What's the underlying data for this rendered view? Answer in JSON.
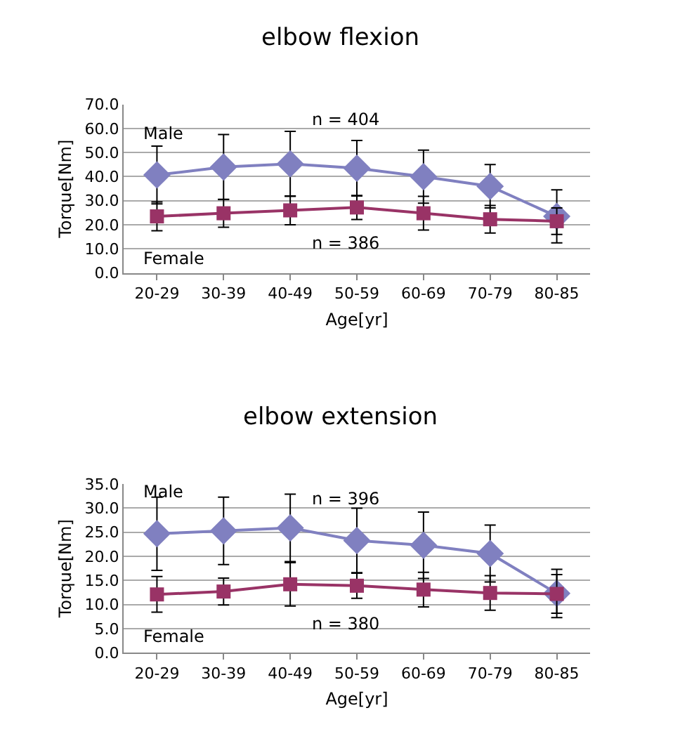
{
  "chart_data": [
    {
      "type": "line",
      "title": "elbow flexion",
      "xlabel": "Age[yr]",
      "ylabel": "Torque[Nm]",
      "categories": [
        "20-29",
        "30-39",
        "40-49",
        "50-59",
        "60-69",
        "70-79",
        "80-85"
      ],
      "series": [
        {
          "name": "Male",
          "color": "#8080c0",
          "marker": "diamond",
          "values": [
            40.7,
            44.0,
            45.3,
            43.5,
            40.0,
            36.0,
            23.5
          ],
          "errors": [
            12.0,
            13.5,
            13.5,
            11.5,
            11.0,
            9.0,
            11.0
          ]
        },
        {
          "name": "Female",
          "color": "#993366",
          "marker": "square",
          "values": [
            23.5,
            24.8,
            26.0,
            27.2,
            24.8,
            22.3,
            21.5
          ],
          "errors": [
            6.0,
            5.8,
            6.0,
            5.0,
            7.0,
            5.7,
            5.5
          ]
        }
      ],
      "annotations": [
        "n = 404",
        "n = 386"
      ],
      "ylim": [
        0,
        70
      ],
      "yticks": [
        {
          "value": 0,
          "label": "0.0"
        },
        {
          "value": 10,
          "label": "10.0"
        },
        {
          "value": 20,
          "label": "20.0"
        },
        {
          "value": 30,
          "label": "30.0"
        },
        {
          "value": 40,
          "label": "40.0"
        },
        {
          "value": 50,
          "label": "50.0"
        },
        {
          "value": 60,
          "label": "60.0"
        },
        {
          "value": 70,
          "label": "70.0"
        }
      ],
      "grid": "y"
    },
    {
      "type": "line",
      "title": "elbow extension",
      "xlabel": "Age[yr]",
      "ylabel": "Torque[Nm]",
      "categories": [
        "20-29",
        "30-39",
        "40-49",
        "50-59",
        "60-69",
        "70-79",
        "80-85"
      ],
      "series": [
        {
          "name": "Male",
          "color": "#8080c0",
          "marker": "diamond",
          "values": [
            24.7,
            25.3,
            25.9,
            23.3,
            22.3,
            20.6,
            12.3
          ],
          "errors": [
            7.6,
            7.0,
            7.0,
            6.7,
            6.9,
            5.9,
            5.0
          ]
        },
        {
          "name": "Female",
          "color": "#993366",
          "marker": "square",
          "values": [
            12.1,
            12.7,
            14.2,
            13.9,
            13.1,
            12.4,
            12.2
          ],
          "errors": [
            3.7,
            2.8,
            4.5,
            2.6,
            3.6,
            3.6,
            4.0
          ]
        }
      ],
      "annotations": [
        "n = 396",
        "n = 380"
      ],
      "ylim": [
        0,
        35
      ],
      "yticks": [
        {
          "value": 0,
          "label": "0.0"
        },
        {
          "value": 5,
          "label": "5.0"
        },
        {
          "value": 10,
          "label": "10.0"
        },
        {
          "value": 15,
          "label": "15.0"
        },
        {
          "value": 20,
          "label": "20.0"
        },
        {
          "value": 25,
          "label": "25.0"
        },
        {
          "value": 30,
          "label": "30.0"
        },
        {
          "value": 35,
          "label": "35.0"
        }
      ],
      "grid": "y"
    }
  ]
}
